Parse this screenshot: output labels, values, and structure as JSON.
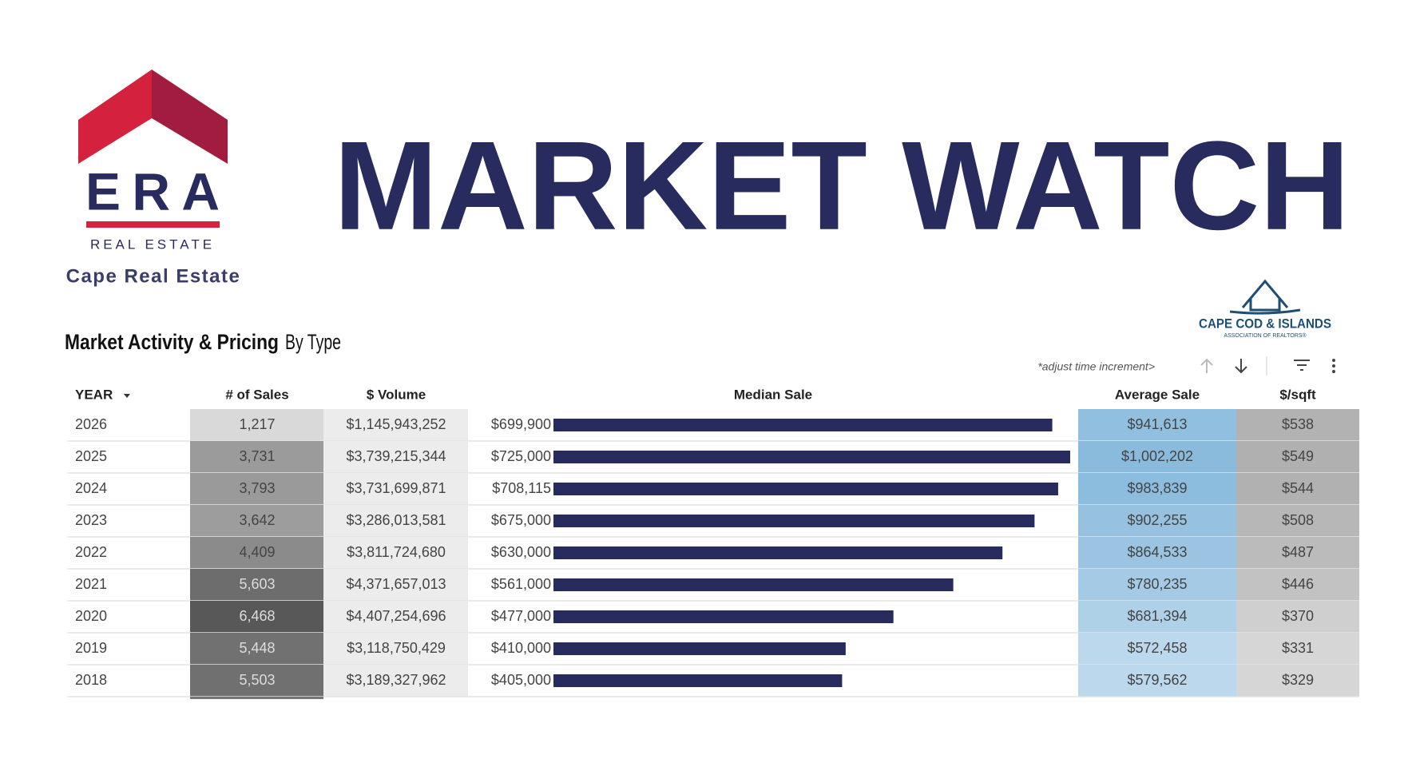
{
  "header": {
    "brand": "ERA",
    "brand_sub": "REAL ESTATE",
    "office": "Cape Real Estate",
    "title": "MARKET WATCH",
    "partner": "CAPE COD & ISLANDS",
    "partner_sub": "ASSOCIATION OF REALTORS®"
  },
  "section": {
    "title_bold": "Market Activity & Pricing",
    "title_light": "By Type",
    "note": "*adjust time increment>"
  },
  "table": {
    "columns": [
      "YEAR",
      "# of Sales",
      "$ Volume",
      "Median Sale",
      "Average Sale",
      "$/sqft"
    ],
    "rows": [
      [
        "2026",
        {
          "value": 1217,
          "label": "1,217"
        },
        "$1,145,943,252",
        {
          "value": 699900,
          "label": "$699,900"
        },
        {
          "value": 941613,
          "label": "$941,613"
        },
        {
          "value": 538,
          "label": "$538"
        }
      ],
      [
        "2025",
        {
          "value": 3731,
          "label": "3,731"
        },
        "$3,739,215,344",
        {
          "value": 725000,
          "label": "$725,000"
        },
        {
          "value": 1002202,
          "label": "$1,002,202"
        },
        {
          "value": 549,
          "label": "$549"
        }
      ],
      [
        "2024",
        {
          "value": 3793,
          "label": "3,793"
        },
        "$3,731,699,871",
        {
          "value": 708115,
          "label": "$708,115"
        },
        {
          "value": 983839,
          "label": "$983,839"
        },
        {
          "value": 544,
          "label": "$544"
        }
      ],
      [
        "2023",
        {
          "value": 3642,
          "label": "3,642"
        },
        "$3,286,013,581",
        {
          "value": 675000,
          "label": "$675,000"
        },
        {
          "value": 902255,
          "label": "$902,255"
        },
        {
          "value": 508,
          "label": "$508"
        }
      ],
      [
        "2022",
        {
          "value": 4409,
          "label": "4,409"
        },
        "$3,811,724,680",
        {
          "value": 630000,
          "label": "$630,000"
        },
        {
          "value": 864533,
          "label": "$864,533"
        },
        {
          "value": 487,
          "label": "$487"
        }
      ],
      [
        "2021",
        {
          "value": 5603,
          "label": "5,603"
        },
        "$4,371,657,013",
        {
          "value": 561000,
          "label": "$561,000"
        },
        {
          "value": 780235,
          "label": "$780,235"
        },
        {
          "value": 446,
          "label": "$446"
        }
      ],
      [
        "2020",
        {
          "value": 6468,
          "label": "6,468"
        },
        "$4,407,254,696",
        {
          "value": 477000,
          "label": "$477,000"
        },
        {
          "value": 681394,
          "label": "$681,394"
        },
        {
          "value": 370,
          "label": "$370"
        }
      ],
      [
        "2019",
        {
          "value": 5448,
          "label": "5,448"
        },
        "$3,118,750,429",
        {
          "value": 410000,
          "label": "$410,000"
        },
        {
          "value": 572458,
          "label": "$572,458"
        },
        {
          "value": 331,
          "label": "$331"
        }
      ],
      [
        "2018",
        {
          "value": 5503,
          "label": "5,503"
        },
        "$3,189,327,962",
        {
          "value": 405000,
          "label": "$405,000"
        },
        {
          "value": 579562,
          "label": "$579,562"
        },
        {
          "value": 329,
          "label": "$329"
        }
      ]
    ]
  }
}
